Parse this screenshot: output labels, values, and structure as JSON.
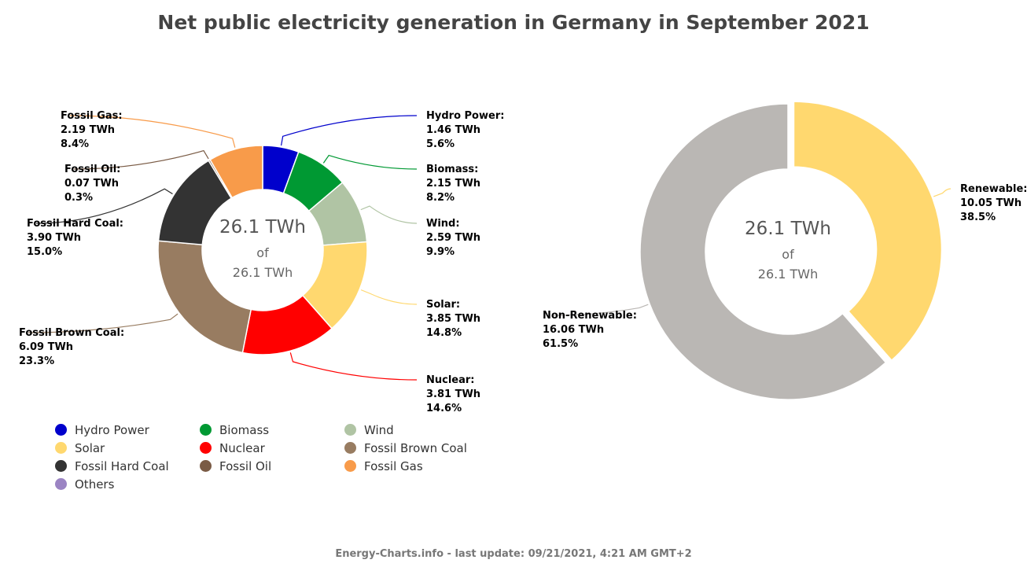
{
  "title": "Net public electricity generation in Germany in September 2021",
  "footer": "Energy-Charts.info - last update: 09/21/2021, 4:21 AM GMT+2",
  "chart_data": [
    {
      "type": "pie",
      "variant": "donut",
      "center": {
        "value": "26.1 TWh",
        "of": "of",
        "total": "26.1 TWh"
      },
      "slices": [
        {
          "name": "Hydro Power",
          "label": "Hydro Power:",
          "value": 1.46,
          "value_label": "1.46 TWh",
          "percent_label": "5.6%",
          "color": "#0000cc"
        },
        {
          "name": "Biomass",
          "label": "Biomass:",
          "value": 2.15,
          "value_label": "2.15 TWh",
          "percent_label": "8.2%",
          "color": "#009933"
        },
        {
          "name": "Wind",
          "label": "Wind:",
          "value": 2.59,
          "value_label": "2.59 TWh",
          "percent_label": "9.9%",
          "color": "#b0c4a4"
        },
        {
          "name": "Solar",
          "label": "Solar:",
          "value": 3.85,
          "value_label": "3.85 TWh",
          "percent_label": "14.8%",
          "color": "#ffd86f"
        },
        {
          "name": "Nuclear",
          "label": "Nuclear:",
          "value": 3.81,
          "value_label": "3.81 TWh",
          "percent_label": "14.6%",
          "color": "#ff0000"
        },
        {
          "name": "Fossil Brown Coal",
          "label": "Fossil Brown Coal:",
          "value": 6.09,
          "value_label": "6.09 TWh",
          "percent_label": "23.3%",
          "color": "#987c61"
        },
        {
          "name": "Fossil Hard Coal",
          "label": "Fossil Hard Coal:",
          "value": 3.9,
          "value_label": "3.90 TWh",
          "percent_label": "15.0%",
          "color": "#333333"
        },
        {
          "name": "Fossil Oil",
          "label": "Fossil Oil:",
          "value": 0.07,
          "value_label": "0.07 TWh",
          "percent_label": "0.3%",
          "color": "#7a5b45"
        },
        {
          "name": "Fossil Gas",
          "label": "Fossil Gas:",
          "value": 2.19,
          "value_label": "2.19 TWh",
          "percent_label": "8.4%",
          "color": "#f89b4a"
        }
      ],
      "legend": [
        {
          "name": "Hydro Power",
          "color": "#0000cc"
        },
        {
          "name": "Biomass",
          "color": "#009933"
        },
        {
          "name": "Wind",
          "color": "#b0c4a4"
        },
        {
          "name": "Solar",
          "color": "#ffd86f"
        },
        {
          "name": "Nuclear",
          "color": "#ff0000"
        },
        {
          "name": "Fossil Brown Coal",
          "color": "#987c61"
        },
        {
          "name": "Fossil Hard Coal",
          "color": "#333333"
        },
        {
          "name": "Fossil Oil",
          "color": "#7a5b45"
        },
        {
          "name": "Fossil Gas",
          "color": "#f89b4a"
        },
        {
          "name": "Others",
          "color": "#9b84c3"
        }
      ]
    },
    {
      "type": "pie",
      "variant": "donut",
      "center": {
        "value": "26.1 TWh",
        "of": "of",
        "total": "26.1 TWh"
      },
      "slices": [
        {
          "name": "Renewable",
          "label": "Renewable:",
          "value": 10.05,
          "value_label": "10.05 TWh",
          "percent_label": "38.5%",
          "color": "#ffd86f",
          "exploded": true
        },
        {
          "name": "Non-Renewable",
          "label": "Non-Renewable:",
          "value": 16.06,
          "value_label": "16.06 TWh",
          "percent_label": "61.5%",
          "color": "#bab7b4"
        }
      ]
    }
  ]
}
